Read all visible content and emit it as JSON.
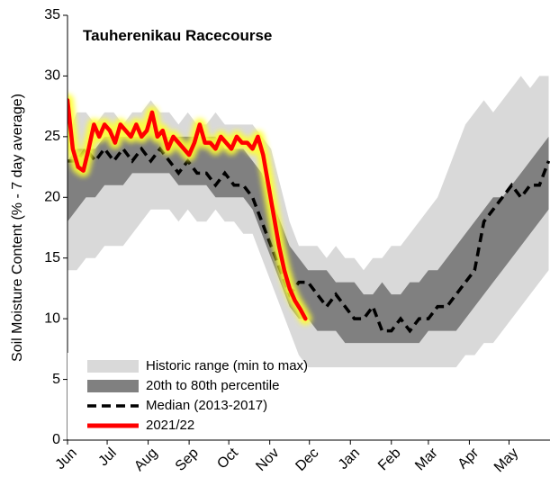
{
  "chart_data": {
    "type": "band-line",
    "title": "Tauherenikau Racecourse",
    "y_label": "Soil Moisture Content (% - 7 day average)",
    "x": [
      0,
      7,
      14,
      21,
      28,
      35,
      42,
      49,
      56,
      63,
      70,
      77,
      84,
      91,
      98,
      105,
      112,
      119,
      126,
      133,
      140,
      147,
      154,
      161,
      168,
      175,
      182,
      189,
      196,
      203,
      210,
      217,
      224,
      231,
      238,
      245,
      252,
      259,
      266,
      273,
      280,
      287,
      294,
      301,
      308,
      315,
      322,
      329,
      336,
      343,
      350,
      357,
      364
    ],
    "xlim": [
      0,
      365
    ],
    "xticks": [
      {
        "value": 0,
        "label": "Jun"
      },
      {
        "value": 30,
        "label": "Jul"
      },
      {
        "value": 61,
        "label": "Aug"
      },
      {
        "value": 92,
        "label": "Sep"
      },
      {
        "value": 122,
        "label": "Oct"
      },
      {
        "value": 153,
        "label": "Nov"
      },
      {
        "value": 183,
        "label": "Dec"
      },
      {
        "value": 214,
        "label": "Jan"
      },
      {
        "value": 245,
        "label": "Feb"
      },
      {
        "value": 273,
        "label": "Mar"
      },
      {
        "value": 304,
        "label": "Apr"
      },
      {
        "value": 334,
        "label": "May"
      }
    ],
    "ylim": [
      0,
      35
    ],
    "yticks": [
      0,
      5,
      10,
      15,
      20,
      25,
      30,
      35
    ],
    "legend": "bottom-left",
    "series": [
      {
        "name": "Historic range (min to max)",
        "kind": "band",
        "color": "#d9d9d9",
        "low": [
          14,
          14,
          15,
          15,
          16,
          16,
          16,
          17,
          18,
          19,
          19,
          19,
          18,
          19,
          18,
          18,
          19,
          18,
          18,
          17,
          17,
          15,
          13,
          11,
          9,
          7,
          6,
          6,
          6,
          6,
          6,
          6,
          6,
          6,
          6,
          6,
          6,
          6,
          6,
          6,
          6,
          6,
          6,
          7,
          7,
          8,
          8,
          9,
          10,
          11,
          12,
          13,
          14
        ],
        "high": [
          25,
          27,
          27,
          26,
          27,
          27,
          26,
          27,
          27,
          28,
          27,
          27,
          26,
          27,
          26,
          26,
          27,
          26,
          26,
          26,
          26,
          25,
          24,
          21,
          18,
          16,
          16,
          16,
          15,
          16,
          15,
          15,
          14,
          15,
          15,
          16,
          16,
          17,
          18,
          19,
          20,
          22,
          24,
          26,
          27,
          28,
          27,
          28,
          29,
          30,
          29,
          30,
          30
        ]
      },
      {
        "name": "20th to 80th percentile",
        "kind": "band",
        "color": "#808080",
        "low": [
          18,
          19,
          20,
          20,
          21,
          21,
          21,
          22,
          22,
          22,
          22,
          22,
          21,
          21,
          21,
          21,
          20,
          20,
          20,
          20,
          19,
          17,
          15,
          13,
          11,
          10,
          10,
          9,
          9,
          9,
          8,
          8,
          8,
          8,
          8,
          8,
          8,
          8,
          8,
          9,
          9,
          9,
          9,
          10,
          11,
          12,
          13,
          14,
          15,
          16,
          17,
          18,
          19
        ],
        "high": [
          23,
          24,
          24,
          24,
          25,
          25,
          25,
          25,
          25,
          26,
          25,
          25,
          25,
          25,
          25,
          25,
          25,
          24,
          24,
          24,
          23,
          22,
          20,
          18,
          16,
          15,
          14,
          14,
          14,
          13,
          13,
          13,
          12,
          12,
          13,
          12,
          12,
          13,
          13,
          14,
          14,
          15,
          16,
          17,
          18,
          19,
          20,
          20,
          21,
          22,
          23,
          24,
          25
        ]
      },
      {
        "name": "Median (2013-2017)",
        "kind": "dashed",
        "color": "#000000",
        "values": [
          23,
          23,
          24,
          23,
          24,
          23,
          24,
          23,
          24,
          23,
          24,
          23,
          22,
          23,
          22,
          22,
          21,
          22,
          21,
          21,
          20,
          18,
          16,
          14,
          12,
          13,
          13,
          12,
          11,
          12,
          11,
          10,
          10,
          11,
          9,
          9,
          10,
          9,
          10,
          10,
          11,
          11,
          12,
          13,
          14,
          18,
          19,
          20,
          21,
          20,
          21,
          21,
          23
        ]
      },
      {
        "name": "2021/22",
        "kind": "glow",
        "color": "#ff0000",
        "x": [
          0,
          4,
          8,
          12,
          16,
          20,
          24,
          28,
          32,
          36,
          40,
          44,
          48,
          52,
          56,
          60,
          64,
          68,
          72,
          76,
          80,
          84,
          88,
          92,
          96,
          100,
          104,
          108,
          112,
          116,
          120,
          124,
          128,
          132,
          136,
          140,
          144,
          148,
          152,
          156,
          160,
          164,
          168,
          172,
          176,
          180
        ],
        "values": [
          28,
          24,
          22.5,
          22.2,
          24,
          26,
          25,
          26,
          25.5,
          24.5,
          26,
          25.5,
          25,
          26,
          25,
          25.5,
          27,
          25,
          25.5,
          24,
          25,
          24.5,
          24,
          23.5,
          24.5,
          26,
          24.5,
          24.5,
          24,
          25,
          24.5,
          24,
          25,
          24.5,
          24.5,
          24,
          25,
          23.5,
          21,
          18.5,
          16,
          14,
          12.5,
          11.5,
          10.8,
          10
        ]
      }
    ]
  }
}
